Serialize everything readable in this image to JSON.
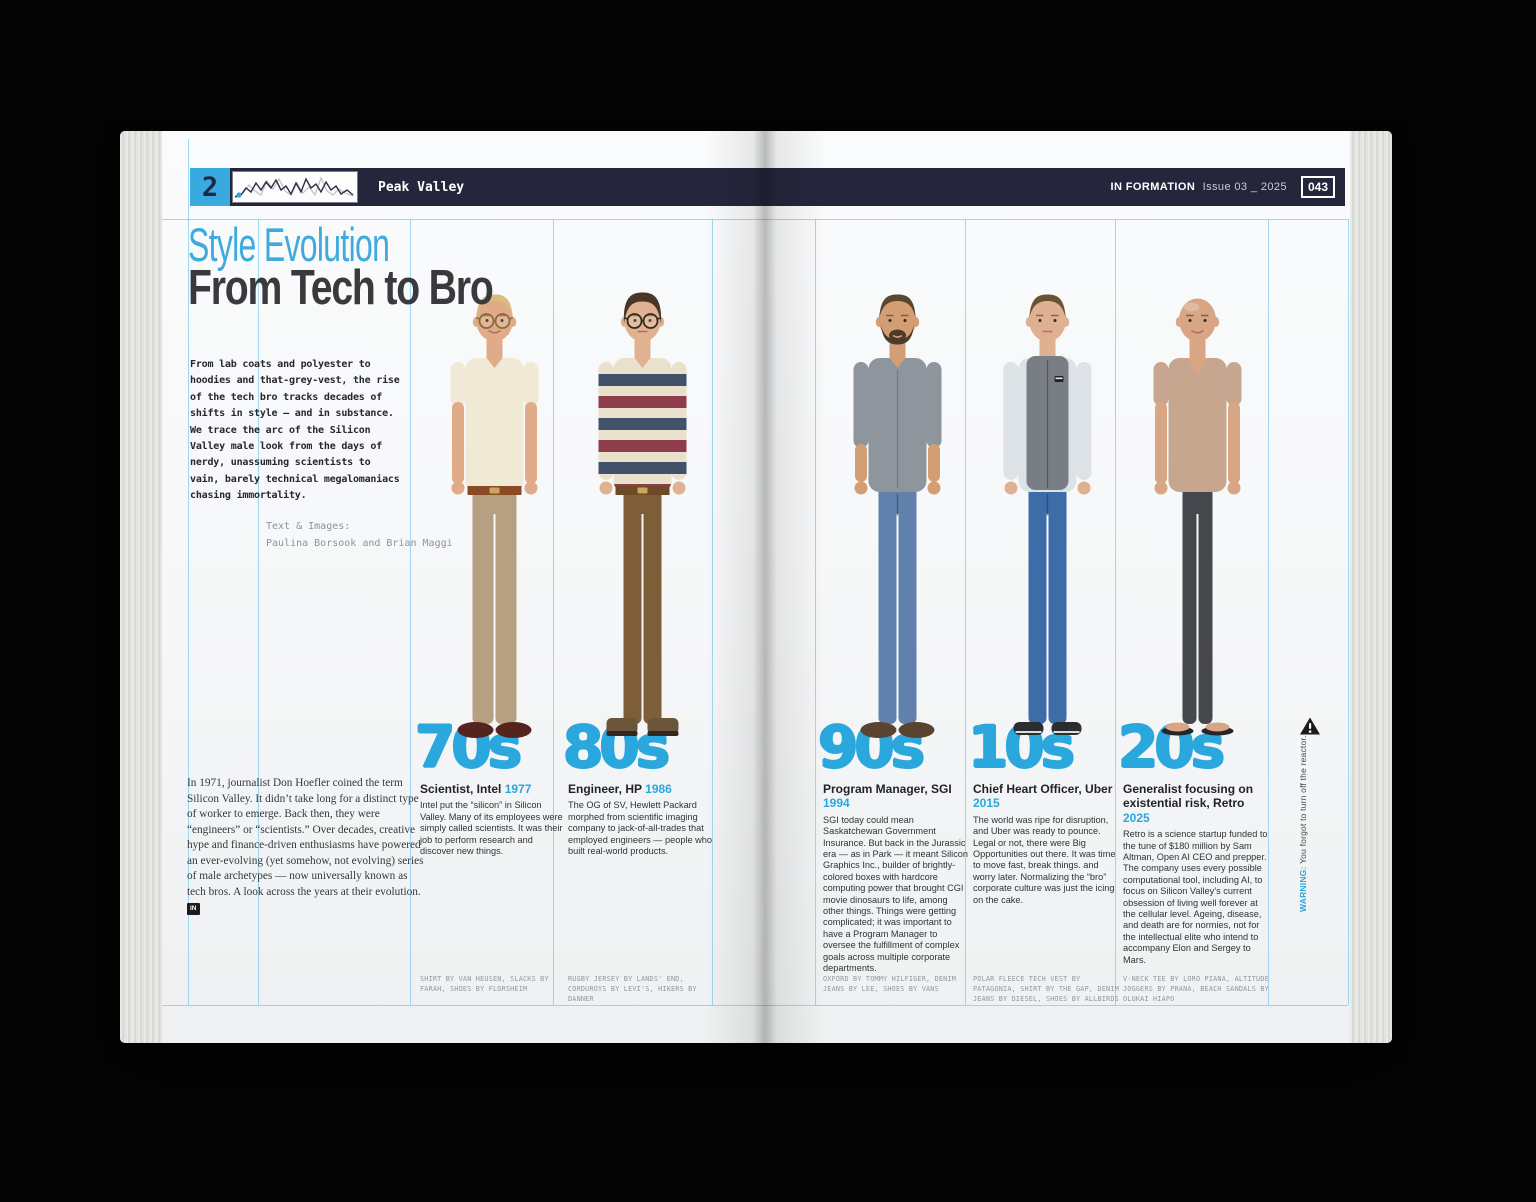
{
  "colors": {
    "accent_blue": "#2aa7dc",
    "header_navy": "#25263c",
    "logo_blue": "#38aadf",
    "guide_cyan": "#54bcec",
    "headline_dark": "#3a3a3c",
    "page_white": "#f7f8f9"
  },
  "header": {
    "section_number": "2",
    "section_title": "Peak Valley",
    "masthead": "IN FORMATION",
    "issue": "Issue 03 _ 2025",
    "page_number": "043",
    "logo_icon": "waveform-sparkline"
  },
  "article": {
    "kicker": "Style Evolution",
    "headline": "From Tech to Bro",
    "standfirst": "From lab coats and polyester to hoodies and that-grey-vest, the rise of the tech bro tracks decades of shifts in style — and in substance. We trace the arc of the Silicon Valley male look from the days of nerdy, unassuming scientists to vain, barely technical megalomaniacs chasing immortality.",
    "byline_label": "Text & Images:",
    "byline_names": "Paulina Borsook and Brian Maggi",
    "body": "In 1971, journalist Don Hoefler coined the term Silicon Valley. It didn’t take long for a distinct type of worker to emerge. Back then, they were “engineers” or “scientists.” Over decades, creative hype and finance-driven enthusiasms have powered an ever-evolving (yet somehow, not evolving) series of male archetypes — now universally known as tech bros.  A look across the years at their evolution.",
    "end_mark": "IN"
  },
  "warning": {
    "icon": "warning-triangle-icon",
    "label": "WARNING:",
    "text": "You forgot to turn off the reactor."
  },
  "decades": [
    {
      "numeral": "70s",
      "role": "Scientist, Intel",
      "year": "1977",
      "description": "Intel put the “silicon” in Silicon Valley. Many of its employees were simply called scientists. It was their job to perform research and discover new things.",
      "credits": "SHIRT BY VAN HEUSEN, SLACKS BY FARAH, SHOES BY FLORSHEIM",
      "photo_description": "Smiling blond man with aviator glasses in a cream short-sleeve shirt, tan slacks and oxblood dress shoes",
      "figure": {
        "skin": "#dfab88",
        "hair": "#d9bc7d",
        "hairStyle": "side",
        "glasses": "#8a6a42",
        "top": "#f0e9d6",
        "sleeves": "short",
        "pants": "#b5a181",
        "flare": true,
        "belt": "#8a4a26",
        "shoes": "#55241e",
        "shoeStyle": "dress",
        "smile": true
      }
    },
    {
      "numeral": "80s",
      "role": "Engineer, HP",
      "year": "1986",
      "description": "The OG of SV, Hewlett Packard morphed from scientific imaging company to jack-of-all-trades that employed engineers — people who built real-world products.",
      "credits": "RUGBY JERSEY BY LANDS' END, CORDUROYS BY LEVI'S, HIKERS BY DANNER",
      "photo_description": "Dark-haired man with large glasses in a striped rugby jersey, brown corduroys and hiking boots",
      "figure": {
        "skin": "#e0b291",
        "hair": "#4a3526",
        "hairStyle": "full",
        "glasses": "#352a20",
        "top": "#e9e1cb",
        "stripes": [
          "#41526a",
          "#8e3d4a"
        ],
        "sleeves": "long",
        "pants": "#7d5e38",
        "belt": "#6e4a28",
        "shoes": "#6b563b",
        "shoeStyle": "boot",
        "smile": false
      }
    },
    {
      "numeral": "90s",
      "role": "Program Manager, SGI",
      "year": "1994",
      "description": "SGI today could mean Saskatchewan Government Insurance. But back in the Jurassic era — as in Park — it meant Silicon Graphics Inc., builder of brightly-colored boxes with hardcore computing power that brought CGI movie dinosaurs to life, among other things. Things were getting complicated; it was important to have a Program Manager to oversee the fulfillment of complex goals across multiple corporate departments.",
      "credits": "OXFORD BY TOMMY HILFIGER, DENIM JEANS BY LEE, SHOES BY VANS",
      "photo_description": "Smiling bearded man in a grey oxford shirt with rolled sleeves, blue jeans and brown shoes",
      "figure": {
        "skin": "#d49e74",
        "hair": "#5b4631",
        "hairStyle": "short",
        "beard": "#4e3a28",
        "top": "#8e959d",
        "buttons": true,
        "sleeves": "rolled",
        "pants": "#5f81ac",
        "jeans": true,
        "shoes": "#5a4430",
        "shoeStyle": "dress",
        "smile": true
      }
    },
    {
      "numeral": "10s",
      "role": "Chief Heart Officer, Uber",
      "year": "2015",
      "description": "The world was ripe for disruption, and Uber was ready to pounce. Legal or not, there were Big Opportunities out there. It was time to move fast, break things. and worry later. Normalizing the “bro” corporate culture was just the icing on the cake.",
      "credits": "POLAR FLEECE TECH VEST BY PATAGONIA, SHIRT BY THE GAP, DENIM JEANS BY DIESEL, SHOES BY ALLBIRDS",
      "photo_description": "Man in a grey fleece tech vest over a check shirt, blue jeans and black sneakers",
      "figure": {
        "skin": "#e0b093",
        "hair": "#6b5232",
        "hairStyle": "short",
        "top": "#dde2e6",
        "vest": "#797e85",
        "sleeves": "long",
        "pants": "#3d6ca9",
        "jeans": true,
        "shoes": "#2b2d31",
        "shoeStyle": "sneaker",
        "smile": false
      }
    },
    {
      "numeral": "20s",
      "role": "Generalist focusing on existential risk, Retro",
      "year": "2025",
      "description": "Retro is a science startup funded to the tune of $180 million by Sam Altman, Open AI CEO and prepper. The company uses every possible computational tool, including AI, to focus on Silicon Valley’s current obsession of living well forever at the cellular level. Ageing, disease, and death are for normies, not for the intellectual elite who intend to accompany Elon and Sergey to Mars.",
      "credits": "V-NECK TEE BY LORO PIANA, ALTITUDE JOGGERS BY PRANA, BEACH SANDALS BY OLUKAI HIAPO",
      "photo_description": "Bald man in a tan v-neck tee, slim charcoal joggers and black flip-flops",
      "figure": {
        "skin": "#d8a685",
        "hairStyle": "bald",
        "top": "#c6a68f",
        "vneck": true,
        "sleeves": "short",
        "pants": "#45474c",
        "slim": true,
        "shoes": "#2a2a2e",
        "shoeStyle": "flipflop",
        "smile": true
      }
    }
  ]
}
